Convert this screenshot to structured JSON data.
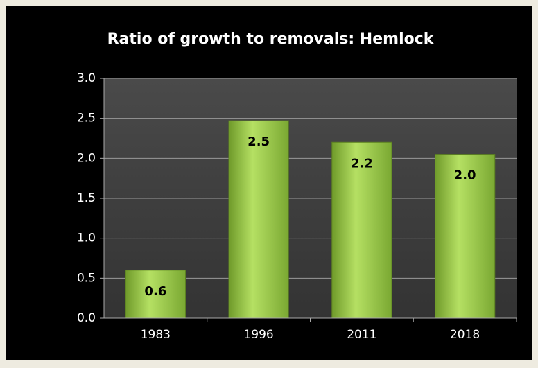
{
  "chart_data": {
    "type": "bar",
    "title": "Ratio of growth to removals:  Hemlock",
    "categories": [
      "1983",
      "1996",
      "2011",
      "2018"
    ],
    "values": [
      0.6,
      2.47,
      2.2,
      2.05
    ],
    "value_labels": [
      "0.6",
      "2.5",
      "2.2",
      "2.0"
    ],
    "color": "#8dc63f",
    "ylim": [
      0,
      3
    ],
    "yticks": [
      {
        "value": 0,
        "label": "0.0"
      },
      0.5,
      {
        "value": 1,
        "label": "1.0"
      },
      1.5,
      {
        "value": 2,
        "label": "2.0"
      },
      2.5,
      {
        "value": 3,
        "label": "3.0"
      }
    ],
    "grid": true
  }
}
